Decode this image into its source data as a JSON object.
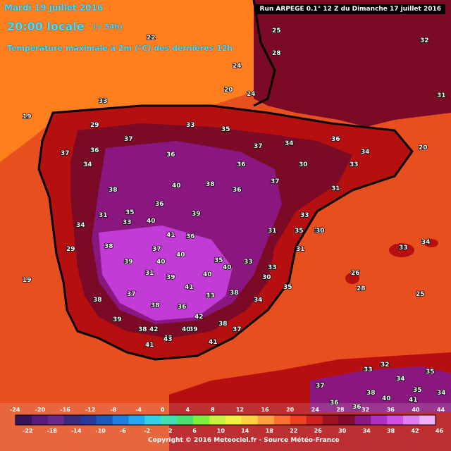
{
  "header": {
    "date": "Mardi 19 juillet 2016",
    "time": "20:00 locale",
    "offset": "(+ 54h)",
    "field": "Température maximale à 2m (°C) des dernières 12h",
    "run": "Run ARPEGE 0.1° 12 Z du Dimanche 17 juillet 2016"
  },
  "footer": {
    "credit": "Copyright © 2016 Meteociel.fr - Source Météo-France"
  },
  "colors": {
    "ocean_warm": "#e84f1f",
    "ocean_hot": "#ff7f1f",
    "land_hot": "#b50f10",
    "land_very_hot": "#7a0a26",
    "land_extreme": "#8a1780",
    "land_peak": "#c13bd5",
    "coast_line": "#000000"
  },
  "scale": {
    "top_labels": [
      "-24",
      "-20",
      "-16",
      "-12",
      "-8",
      "-4",
      "0",
      "4",
      "8",
      "12",
      "16",
      "20",
      "24",
      "28",
      "32",
      "36",
      "40",
      "44"
    ],
    "bottom_labels": [
      "-22",
      "-18",
      "-14",
      "-10",
      "-6",
      "-2",
      "2",
      "6",
      "10",
      "14",
      "18",
      "22",
      "26",
      "30",
      "34",
      "38",
      "42",
      "46"
    ],
    "colors": [
      "#3a1458",
      "#5a1a7a",
      "#6b2a8a",
      "#3b2a7a",
      "#2a3a9a",
      "#1a5aba",
      "#1e7fe0",
      "#26a8f0",
      "#33d0e8",
      "#40e0b0",
      "#49e070",
      "#80f040",
      "#c8f040",
      "#f0f040",
      "#ffd040",
      "#ffa040",
      "#ff7030",
      "#f04020",
      "#d02020",
      "#a01020",
      "#800a30",
      "#8a1a80",
      "#b030c0",
      "#d050e0",
      "#e080f0",
      "#f0b0f8"
    ]
  },
  "labels": [
    {
      "t": "22"
    },
    {
      "t": "25"
    },
    {
      "t": "24"
    },
    {
      "t": "28"
    },
    {
      "t": "20"
    },
    {
      "t": "24"
    },
    {
      "t": "33"
    },
    {
      "t": "29"
    },
    {
      "t": "19"
    },
    {
      "t": "36"
    },
    {
      "t": "37"
    },
    {
      "t": "36"
    },
    {
      "t": "33"
    },
    {
      "t": "35"
    },
    {
      "t": "34"
    },
    {
      "t": "30"
    },
    {
      "t": "31"
    },
    {
      "t": "37"
    },
    {
      "t": "34"
    },
    {
      "t": "38"
    },
    {
      "t": "35"
    },
    {
      "t": "36"
    },
    {
      "t": "40"
    },
    {
      "t": "38"
    },
    {
      "t": "36"
    },
    {
      "t": "37"
    },
    {
      "t": "33"
    },
    {
      "t": "34"
    },
    {
      "t": "29"
    },
    {
      "t": "31"
    },
    {
      "t": "33"
    },
    {
      "t": "37"
    },
    {
      "t": "36"
    },
    {
      "t": "35"
    },
    {
      "t": "33"
    },
    {
      "t": "30"
    },
    {
      "t": "35"
    },
    {
      "t": "38"
    },
    {
      "t": "39"
    },
    {
      "t": "31"
    },
    {
      "t": "39"
    },
    {
      "t": "41"
    },
    {
      "t": "40"
    },
    {
      "t": "40"
    },
    {
      "t": "38"
    },
    {
      "t": "37"
    },
    {
      "t": "38"
    },
    {
      "t": "36"
    },
    {
      "t": "33"
    },
    {
      "t": "38"
    },
    {
      "t": "40"
    },
    {
      "t": "39"
    },
    {
      "t": "38"
    },
    {
      "t": "39"
    },
    {
      "t": "38"
    },
    {
      "t": "40"
    },
    {
      "t": "40"
    },
    {
      "t": "41"
    },
    {
      "t": "40"
    },
    {
      "t": "39"
    },
    {
      "t": "42"
    },
    {
      "t": "41"
    },
    {
      "t": "43"
    },
    {
      "t": "40"
    },
    {
      "t": "42"
    },
    {
      "t": "41"
    },
    {
      "t": "37"
    },
    {
      "t": "34"
    },
    {
      "t": "33"
    },
    {
      "t": "35"
    },
    {
      "t": "35"
    },
    {
      "t": "31"
    },
    {
      "t": "36"
    },
    {
      "t": "34"
    },
    {
      "t": "33"
    },
    {
      "t": "30"
    },
    {
      "t": "31"
    },
    {
      "t": "26"
    },
    {
      "t": "25"
    },
    {
      "t": "28"
    },
    {
      "t": "33"
    },
    {
      "t": "34"
    },
    {
      "t": "31"
    },
    {
      "t": "32"
    },
    {
      "t": "20"
    },
    {
      "t": "19"
    },
    {
      "t": "33"
    },
    {
      "t": "32"
    },
    {
      "t": "34"
    },
    {
      "t": "35"
    },
    {
      "t": "36"
    },
    {
      "t": "38"
    },
    {
      "t": "40"
    },
    {
      "t": "41"
    },
    {
      "t": "37"
    },
    {
      "t": "36"
    },
    {
      "t": "35"
    },
    {
      "t": "34"
    },
    {
      "t": "37"
    },
    {
      "t": "36"
    }
  ]
}
